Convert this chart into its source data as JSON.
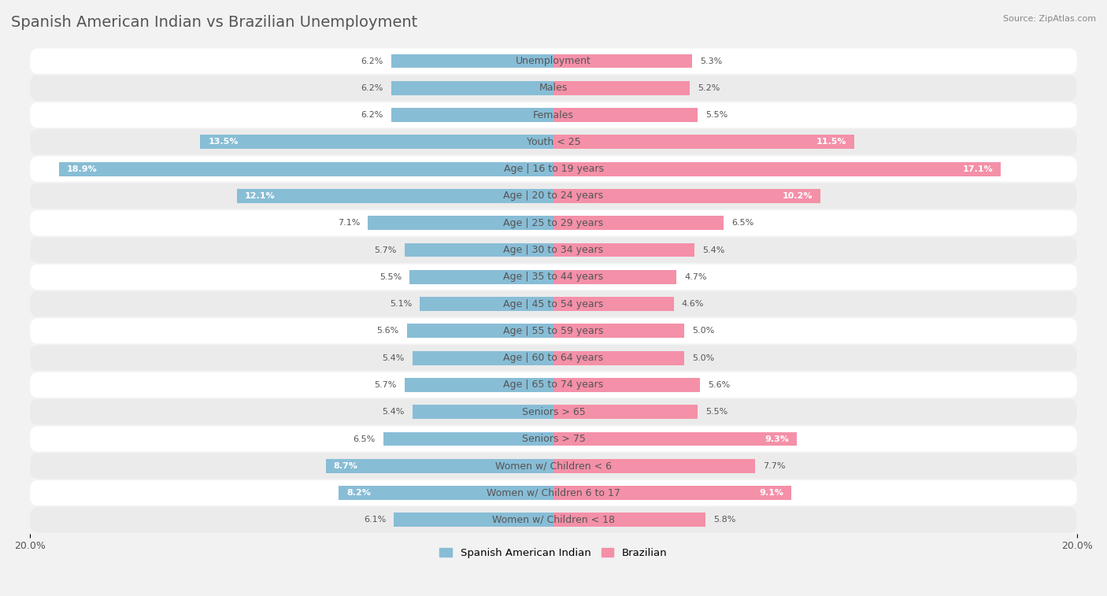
{
  "title": "Spanish American Indian vs Brazilian Unemployment",
  "source": "Source: ZipAtlas.com",
  "categories": [
    "Unemployment",
    "Males",
    "Females",
    "Youth < 25",
    "Age | 16 to 19 years",
    "Age | 20 to 24 years",
    "Age | 25 to 29 years",
    "Age | 30 to 34 years",
    "Age | 35 to 44 years",
    "Age | 45 to 54 years",
    "Age | 55 to 59 years",
    "Age | 60 to 64 years",
    "Age | 65 to 74 years",
    "Seniors > 65",
    "Seniors > 75",
    "Women w/ Children < 6",
    "Women w/ Children 6 to 17",
    "Women w/ Children < 18"
  ],
  "left_values": [
    6.2,
    6.2,
    6.2,
    13.5,
    18.9,
    12.1,
    7.1,
    5.7,
    5.5,
    5.1,
    5.6,
    5.4,
    5.7,
    5.4,
    6.5,
    8.7,
    8.2,
    6.1
  ],
  "right_values": [
    5.3,
    5.2,
    5.5,
    11.5,
    17.1,
    10.2,
    6.5,
    5.4,
    4.7,
    4.6,
    5.0,
    5.0,
    5.6,
    5.5,
    9.3,
    7.7,
    9.1,
    5.8
  ],
  "left_color": "#88bdd6",
  "right_color": "#f490a8",
  "left_label": "Spanish American Indian",
  "right_label": "Brazilian",
  "axis_max": 20.0,
  "bg_color": "#f2f2f2",
  "row_color_even": "#ffffff",
  "row_color_odd": "#ebebeb",
  "title_fontsize": 14,
  "label_fontsize": 9,
  "value_fontsize": 8,
  "axis_label_fontsize": 9,
  "title_color": "#555555",
  "label_color": "#555555",
  "value_color_inside": "#ffffff",
  "value_color_outside": "#555555"
}
